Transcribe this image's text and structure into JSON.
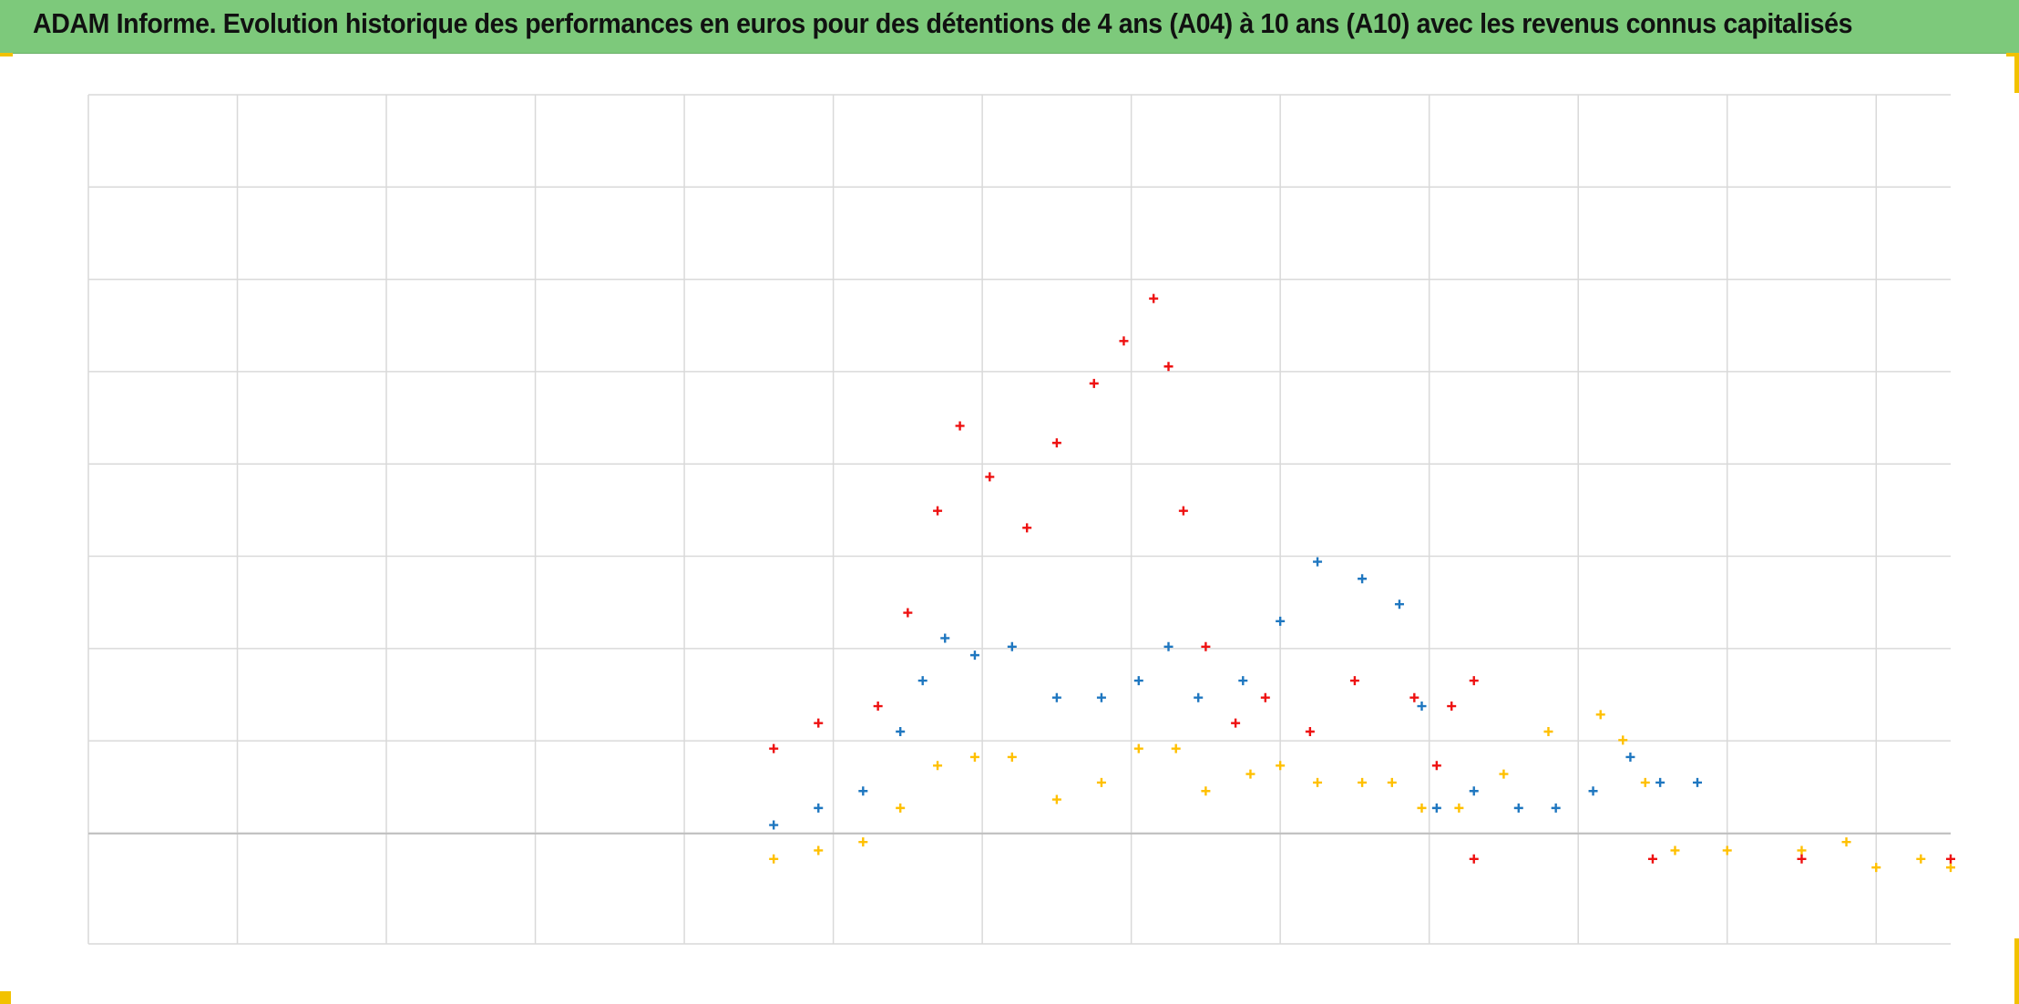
{
  "title": "ADAM Informe. Evolution historique des performances en euros pour des détentions de 4 ans (A04) à 10 ans (A10) avec les revenus connus capitalisés",
  "colors": {
    "header_bg": "#7dc97b",
    "gridline": "#d9d9d9",
    "zero_line": "#bfbfbf",
    "corner_marks": "#f2c200"
  },
  "chart_data": {
    "type": "scatter",
    "marker": "plus",
    "title": "",
    "xlabel": "",
    "ylabel": "",
    "tick_labels_visible": false,
    "x_gridlines": 13,
    "y_gridlines": 9,
    "xlim": [
      0,
      12.5
    ],
    "ylim": [
      -1.3,
      8.7
    ],
    "grid": true,
    "legend": "none",
    "series": [
      {
        "color": "#ee1111",
        "values": [
          [
            4.6,
            1.0
          ],
          [
            4.9,
            1.3
          ],
          [
            5.3,
            1.5
          ],
          [
            5.5,
            2.6
          ],
          [
            5.7,
            3.8
          ],
          [
            5.85,
            4.8
          ],
          [
            6.05,
            4.2
          ],
          [
            6.3,
            3.6
          ],
          [
            6.5,
            4.6
          ],
          [
            6.75,
            5.3
          ],
          [
            6.95,
            5.8
          ],
          [
            7.15,
            6.3
          ],
          [
            7.25,
            5.5
          ],
          [
            7.35,
            3.8
          ],
          [
            7.5,
            2.2
          ],
          [
            7.7,
            1.3
          ],
          [
            7.9,
            1.6
          ],
          [
            8.2,
            1.2
          ],
          [
            8.5,
            1.8
          ],
          [
            8.9,
            1.6
          ],
          [
            9.05,
            0.8
          ],
          [
            9.15,
            1.5
          ],
          [
            9.3,
            1.8
          ]
        ]
      },
      {
        "color": "#1f77c0",
        "values": [
          [
            4.6,
            0.1
          ],
          [
            4.9,
            0.3
          ],
          [
            5.2,
            0.5
          ],
          [
            5.45,
            1.2
          ],
          [
            5.6,
            1.8
          ],
          [
            5.75,
            2.3
          ],
          [
            5.95,
            2.1
          ],
          [
            6.2,
            2.2
          ],
          [
            6.5,
            1.6
          ],
          [
            6.8,
            1.6
          ],
          [
            7.05,
            1.8
          ],
          [
            7.25,
            2.2
          ],
          [
            7.45,
            1.6
          ],
          [
            7.75,
            1.8
          ],
          [
            8.0,
            2.5
          ],
          [
            8.25,
            3.2
          ],
          [
            8.55,
            3.0
          ],
          [
            8.8,
            2.7
          ],
          [
            8.95,
            1.5
          ],
          [
            9.05,
            0.3
          ],
          [
            9.3,
            0.5
          ],
          [
            9.6,
            0.3
          ],
          [
            9.85,
            0.3
          ],
          [
            10.1,
            0.5
          ],
          [
            10.35,
            0.9
          ],
          [
            10.55,
            0.6
          ],
          [
            10.8,
            0.6
          ]
        ]
      },
      {
        "color": "#ffc000",
        "values": [
          [
            4.6,
            -0.3
          ],
          [
            4.9,
            -0.2
          ],
          [
            5.2,
            -0.1
          ],
          [
            5.45,
            0.3
          ],
          [
            5.7,
            0.8
          ],
          [
            5.95,
            0.9
          ],
          [
            6.2,
            0.9
          ],
          [
            6.5,
            0.4
          ],
          [
            6.8,
            0.6
          ],
          [
            7.05,
            1.0
          ],
          [
            7.3,
            1.0
          ],
          [
            7.5,
            0.5
          ],
          [
            7.8,
            0.7
          ],
          [
            8.0,
            0.8
          ],
          [
            8.25,
            0.6
          ],
          [
            8.55,
            0.6
          ],
          [
            8.75,
            0.6
          ],
          [
            8.95,
            0.3
          ],
          [
            9.2,
            0.3
          ],
          [
            9.5,
            0.7
          ],
          [
            9.8,
            1.2
          ],
          [
            10.15,
            1.4
          ],
          [
            10.3,
            1.1
          ],
          [
            10.45,
            0.6
          ],
          [
            10.65,
            -0.2
          ],
          [
            11.0,
            -0.2
          ],
          [
            11.5,
            -0.2
          ],
          [
            11.8,
            -0.1
          ],
          [
            12.0,
            -0.4
          ],
          [
            12.3,
            -0.3
          ],
          [
            12.5,
            -0.4
          ]
        ]
      },
      {
        "color": "#ee1111",
        "values": [
          [
            9.3,
            -0.3
          ],
          [
            10.5,
            -0.3
          ],
          [
            11.5,
            -0.3
          ],
          [
            12.5,
            -0.3
          ]
        ]
      }
    ]
  }
}
